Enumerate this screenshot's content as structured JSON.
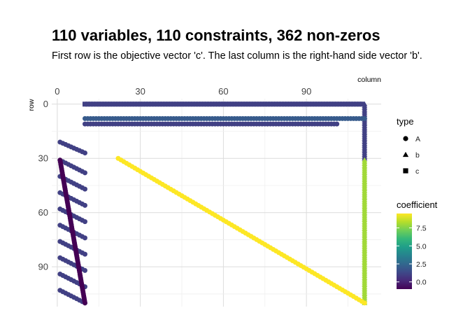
{
  "chart_data": {
    "type": "scatter",
    "title": "110 variables, 110 constraints, 362 non-zeros",
    "subtitle": "First row is the objective vector 'c'. The last column is the right-hand side vector 'b'.",
    "xlabel": "column",
    "ylabel": "row",
    "x_axis_position": "top",
    "y_reversed": true,
    "xlim": [
      -2,
      117
    ],
    "ylim": [
      -3,
      112
    ],
    "x_ticks": [
      0,
      30,
      60,
      90
    ],
    "y_ticks": [
      0,
      30,
      60,
      90
    ],
    "x_tick_labels": [
      "0",
      "30",
      "60",
      "90"
    ],
    "y_tick_labels": [
      "0",
      "30",
      "60",
      "90"
    ],
    "grid": true,
    "color_scale": {
      "title": "coefficient",
      "palette": "viridis",
      "range": [
        -1,
        9.5
      ],
      "ticks": [
        0,
        2.5,
        5,
        7.5
      ],
      "tick_labels": [
        "0.0",
        "2.5",
        "5.0",
        "7.5"
      ],
      "stops": [
        "#440154",
        "#482878",
        "#3e4989",
        "#31688e",
        "#26828e",
        "#1f9e89",
        "#35b779",
        "#6ece58",
        "#b5de2b",
        "#fde725"
      ]
    },
    "shape_legend": {
      "title": "type",
      "entries": [
        {
          "label": "A",
          "shape": "circle"
        },
        {
          "label": "b",
          "shape": "triangle"
        },
        {
          "label": "c",
          "shape": "square"
        }
      ]
    },
    "series": [
      {
        "type": "c",
        "shape": "square",
        "from": [
          10,
          0
        ],
        "to": [
          110,
          0
        ],
        "coefficient": 1
      },
      {
        "type": "b",
        "shape": "triangle",
        "from": [
          111,
          0
        ],
        "to": [
          111,
          30
        ],
        "coefficient": 1
      },
      {
        "type": "b",
        "shape": "triangle",
        "from": [
          111,
          31
        ],
        "to": [
          111,
          110
        ],
        "coefficient": 8
      },
      {
        "type": "A",
        "shape": "circle",
        "from": [
          22,
          30
        ],
        "to": [
          111,
          110
        ],
        "coefficient": 9.5
      },
      {
        "type": "A",
        "shape": "circle",
        "from": [
          10,
          8
        ],
        "to": [
          111,
          8
        ],
        "coefficient": 2
      },
      {
        "type": "A",
        "shape": "circle",
        "from": [
          10,
          11
        ],
        "to": [
          101,
          11
        ],
        "coefficient": 1
      },
      {
        "type": "A",
        "shape": "circle",
        "from": [
          1,
          21
        ],
        "to": [
          10,
          27
        ],
        "coefficient": 1
      },
      {
        "type": "A",
        "shape": "circle",
        "from": [
          1,
          31
        ],
        "to": [
          10,
          38
        ],
        "coefficient": 1
      },
      {
        "type": "A",
        "shape": "circle",
        "from": [
          1,
          40
        ],
        "to": [
          10,
          47
        ],
        "coefficient": 1
      },
      {
        "type": "A",
        "shape": "circle",
        "from": [
          1,
          49
        ],
        "to": [
          10,
          56
        ],
        "coefficient": 1
      },
      {
        "type": "A",
        "shape": "circle",
        "from": [
          1,
          58
        ],
        "to": [
          10,
          65
        ],
        "coefficient": 1
      },
      {
        "type": "A",
        "shape": "circle",
        "from": [
          1,
          67
        ],
        "to": [
          10,
          74
        ],
        "coefficient": 1
      },
      {
        "type": "A",
        "shape": "circle",
        "from": [
          1,
          76
        ],
        "to": [
          10,
          83
        ],
        "coefficient": 1
      },
      {
        "type": "A",
        "shape": "circle",
        "from": [
          1,
          85
        ],
        "to": [
          10,
          92
        ],
        "coefficient": 1
      },
      {
        "type": "A",
        "shape": "circle",
        "from": [
          1,
          94
        ],
        "to": [
          10,
          101
        ],
        "coefficient": 1
      },
      {
        "type": "A",
        "shape": "circle",
        "from": [
          1,
          103
        ],
        "to": [
          10,
          110
        ],
        "coefficient": 1
      },
      {
        "type": "A",
        "shape": "circle",
        "from": [
          1,
          31
        ],
        "to": [
          10,
          110
        ],
        "coefficient": -1
      }
    ]
  }
}
